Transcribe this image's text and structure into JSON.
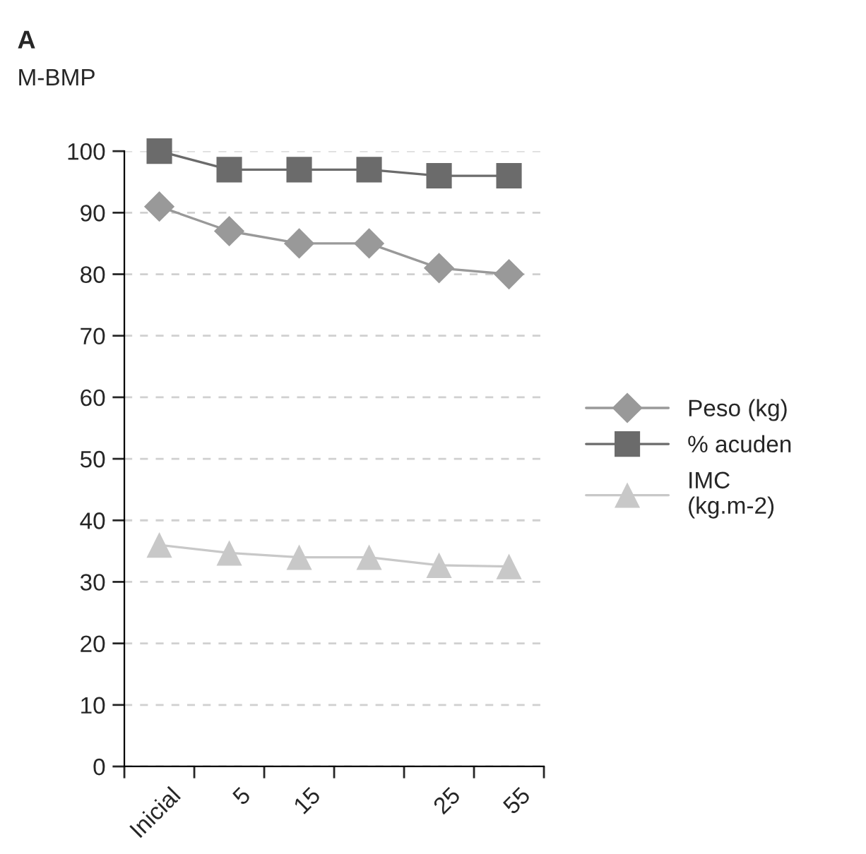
{
  "chart_data": {
    "type": "line",
    "title": "A",
    "subtitle": "M-BMP",
    "categories": [
      "Inicial",
      "5",
      "15",
      null,
      "25",
      "55"
    ],
    "series": [
      {
        "name": "Peso (kg)",
        "color": "#999999",
        "marker": "diamond",
        "values": [
          91,
          87,
          85,
          85,
          81,
          80
        ]
      },
      {
        "name": "% acuden",
        "color": "#6b6b6b",
        "marker": "square",
        "values": [
          100,
          97,
          97,
          97,
          96,
          96
        ]
      },
      {
        "name": "IMC\n(kg.m-2)",
        "color": "#c8c8c8",
        "marker": "triangle",
        "values": [
          36,
          34.7,
          34,
          34,
          32.7,
          32.5
        ]
      }
    ],
    "ylim": [
      0,
      100
    ],
    "yticks": [
      0,
      10,
      20,
      30,
      40,
      50,
      60,
      70,
      80,
      90,
      100
    ],
    "grid": "y",
    "legend": "right",
    "line_style": "solid"
  }
}
